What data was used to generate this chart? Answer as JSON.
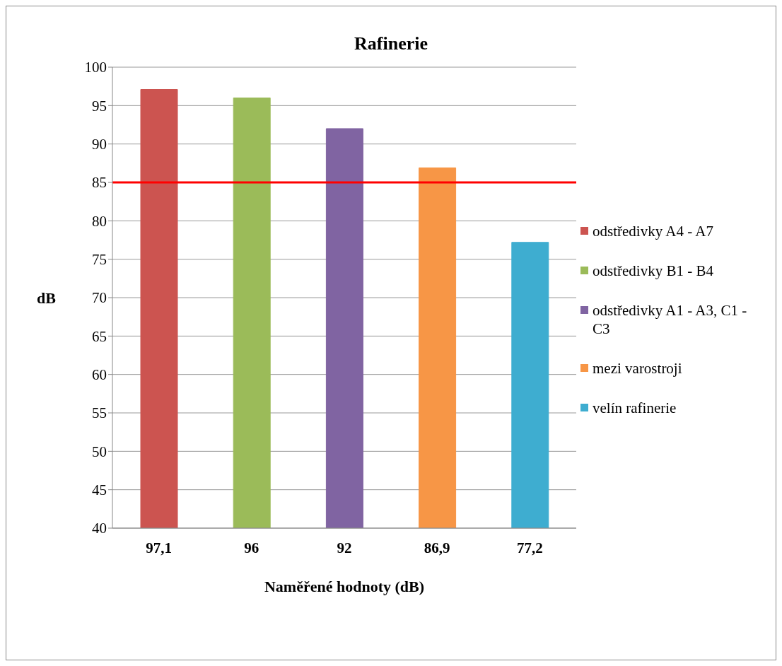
{
  "chart_data": {
    "type": "bar",
    "title": "Rafinerie",
    "xlabel": "Naměřené hodnoty (dB)",
    "ylabel": "dB",
    "categories": [
      "97,1",
      "96",
      "92",
      "86,9",
      "77,2"
    ],
    "stacked": true,
    "series": [
      {
        "name": "odstředivky A4 - A7",
        "color": "#cc5450",
        "values": [
          97.1,
          null,
          null,
          null,
          null
        ]
      },
      {
        "name": "odstředivky B1 - B4",
        "color": "#9bbb59",
        "values": [
          null,
          96,
          null,
          null,
          null
        ]
      },
      {
        "name": "odstředivky A1 - A3, C1 - C3",
        "color": "#8064a2",
        "values": [
          null,
          null,
          92,
          null,
          null
        ]
      },
      {
        "name": "mezi varostroji",
        "color": "#f79646",
        "values": [
          null,
          null,
          null,
          86.9,
          null
        ]
      },
      {
        "name": "velín rafinerie",
        "color": "#3eadd0",
        "values": [
          null,
          null,
          null,
          null,
          77.2
        ]
      }
    ],
    "ylim": [
      40,
      100
    ],
    "yticks": [
      40,
      45,
      50,
      55,
      60,
      65,
      70,
      75,
      80,
      85,
      90,
      95,
      100
    ],
    "ref_lines": [
      {
        "axis": "y",
        "value": 85,
        "color": "#ff0000"
      }
    ],
    "grid": "y",
    "legend": "right"
  }
}
